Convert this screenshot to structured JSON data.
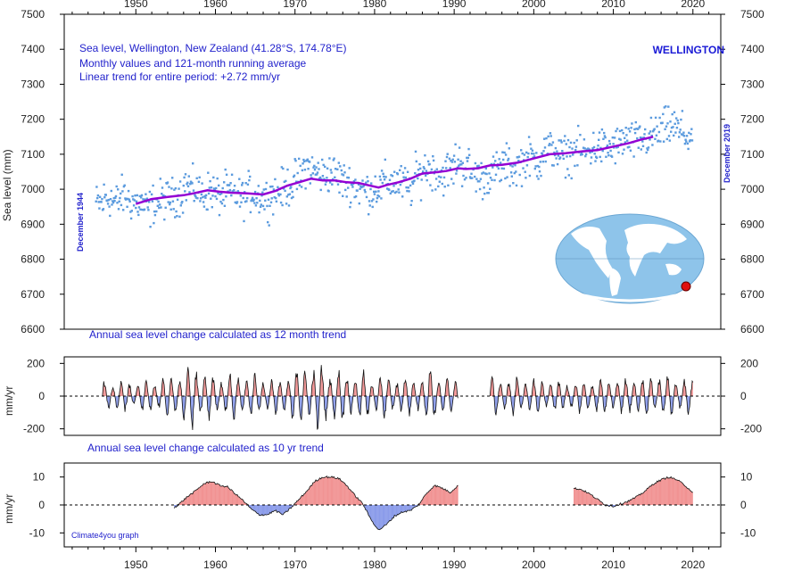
{
  "chart_data": [
    {
      "type": "scatter",
      "title": "WELLINGTON",
      "annotation_lines": [
        "Sea level, Wellington, New Zealand (41.28°S, 174.78°E)",
        "Monthly values and 121-month running average",
        "Linear trend for entire period: +2.72 mm/yr"
      ],
      "ylabel": "Sea level (mm)",
      "xlim": [
        1941,
        2023.5
      ],
      "ylim": [
        6600,
        7500
      ],
      "y_ticks": [
        "6600",
        "6700",
        "6800",
        "6900",
        "7000",
        "7100",
        "7200",
        "7300",
        "7400",
        "7500"
      ],
      "x_ticks": [
        "1950",
        "1960",
        "1970",
        "1980",
        "1990",
        "2000",
        "2010",
        "2020"
      ],
      "start_label": "December 1944",
      "end_label": "December 2019",
      "grid": false,
      "series": [
        {
          "kind": "monthly_points",
          "color": "#5b9bde",
          "yearly_mean": [
            [
              1945,
              6960
            ],
            [
              1946,
              6975
            ],
            [
              1947,
              6965
            ],
            [
              1948,
              6980
            ],
            [
              1949,
              6965
            ],
            [
              1950,
              6958
            ],
            [
              1951,
              6945
            ],
            [
              1952,
              6960
            ],
            [
              1953,
              6970
            ],
            [
              1954,
              6975
            ],
            [
              1955,
              6985
            ],
            [
              1956,
              7010
            ],
            [
              1957,
              7000
            ],
            [
              1958,
              6985
            ],
            [
              1959,
              6995
            ],
            [
              1960,
              6980
            ],
            [
              1961,
              6990
            ],
            [
              1962,
              6985
            ],
            [
              1963,
              6975
            ],
            [
              1964,
              6990
            ],
            [
              1965,
              6980
            ],
            [
              1966,
              6975
            ],
            [
              1967,
              6990
            ],
            [
              1968,
              7000
            ],
            [
              1969,
              7010
            ],
            [
              1970,
              7030
            ],
            [
              1971,
              7065
            ],
            [
              1972,
              7050
            ],
            [
              1973,
              7040
            ],
            [
              1974,
              7045
            ],
            [
              1975,
              7035
            ],
            [
              1976,
              7020
            ],
            [
              1977,
              7010
            ],
            [
              1978,
              7000
            ],
            [
              1979,
              6995
            ],
            [
              1980,
              7005
            ],
            [
              1981,
              7020
            ],
            [
              1982,
              7020
            ],
            [
              1983,
              7015
            ],
            [
              1984,
              7005
            ],
            [
              1985,
              7040
            ],
            [
              1986,
              7060
            ],
            [
              1987,
              7055
            ],
            [
              1988,
              7040
            ],
            [
              1989,
              7055
            ],
            [
              1990,
              7080
            ],
            [
              1991,
              7065
            ],
            [
              1992,
              7045
            ],
            [
              1993,
              7030
            ],
            [
              1994,
              7040
            ],
            [
              1995,
              7055
            ],
            [
              1996,
              7070
            ],
            [
              1997,
              7060
            ],
            [
              1998,
              7075
            ],
            [
              1999,
              7090
            ],
            [
              2000,
              7080
            ],
            [
              2001,
              7110
            ],
            [
              2002,
              7115
            ],
            [
              2003,
              7095
            ],
            [
              2004,
              7100
            ],
            [
              2005,
              7110
            ],
            [
              2006,
              7105
            ],
            [
              2007,
              7115
            ],
            [
              2008,
              7120
            ],
            [
              2009,
              7115
            ],
            [
              2010,
              7125
            ],
            [
              2011,
              7140
            ],
            [
              2012,
              7135
            ],
            [
              2013,
              7140
            ],
            [
              2014,
              7145
            ],
            [
              2015,
              7160
            ],
            [
              2016,
              7175
            ],
            [
              2017,
              7180
            ],
            [
              2018,
              7165
            ],
            [
              2019,
              7150
            ]
          ]
        },
        {
          "kind": "running_average_121_month",
          "color": "#9400d3",
          "points": [
            [
              1950.0,
              6958
            ],
            [
              1952.0,
              6972
            ],
            [
              1954.0,
              6978
            ],
            [
              1956.0,
              6983
            ],
            [
              1957.0,
              6987
            ],
            [
              1959.0,
              6997
            ],
            [
              1960.5,
              6993
            ],
            [
              1962.0,
              6990
            ],
            [
              1964.0,
              6988
            ],
            [
              1966.0,
              6985
            ],
            [
              1967.5,
              6995
            ],
            [
              1969.0,
              7010
            ],
            [
              1970.5,
              7020
            ],
            [
              1972.0,
              7030
            ],
            [
              1973.5,
              7025
            ],
            [
              1975.0,
              7025
            ],
            [
              1976.5,
              7020
            ],
            [
              1978.0,
              7018
            ],
            [
              1979.5,
              7010
            ],
            [
              1980.5,
              7005
            ],
            [
              1981.5,
              7012
            ],
            [
              1983.0,
              7020
            ],
            [
              1984.5,
              7030
            ],
            [
              1986.0,
              7045
            ],
            [
              1987.5,
              7048
            ],
            [
              1989.0,
              7052
            ],
            [
              1990.5,
              7060
            ],
            [
              1991.5,
              7058
            ],
            [
              1993.0,
              7060
            ],
            [
              1994.5,
              7068
            ],
            [
              1996.0,
              7070
            ],
            [
              1998.0,
              7076
            ],
            [
              2000.0,
              7088
            ],
            [
              2002.0,
              7100
            ],
            [
              2004.0,
              7103
            ],
            [
              2006.0,
              7108
            ],
            [
              2008.0,
              7112
            ],
            [
              2010.0,
              7122
            ],
            [
              2012.0,
              7132
            ],
            [
              2013.5,
              7142
            ],
            [
              2015.0,
              7150
            ]
          ]
        }
      ],
      "inset": "world-map-icon with red location marker"
    },
    {
      "type": "area",
      "title": "Annual sea level change calculated as 12 month trend",
      "ylabel": "mm/yr",
      "xlim": [
        1941,
        2023.5
      ],
      "ylim": [
        -240,
        240
      ],
      "y_ticks": [
        "-200",
        "0",
        "200"
      ],
      "grid": false,
      "positive_color": "#e63b3b",
      "negative_color": "#2b4bd8",
      "gap": [
        1990.5,
        1994.5
      ],
      "oscillation_amplitudes": [
        [
          1946,
          90
        ],
        [
          1950,
          80
        ],
        [
          1954,
          110
        ],
        [
          1957,
          200
        ],
        [
          1960,
          120
        ],
        [
          1964,
          130
        ],
        [
          1968,
          100
        ],
        [
          1971,
          190
        ],
        [
          1974,
          170
        ],
        [
          1977,
          150
        ],
        [
          1980,
          120
        ],
        [
          1983,
          110
        ],
        [
          1986,
          130
        ],
        [
          1987.3,
          180
        ],
        [
          1989,
          100
        ],
        [
          1996,
          120
        ],
        [
          2000,
          100
        ],
        [
          2004,
          90
        ],
        [
          2008,
          100
        ],
        [
          2012,
          110
        ],
        [
          2016,
          130
        ],
        [
          2020,
          90
        ]
      ]
    },
    {
      "type": "area",
      "title": "Annual sea level change calculated as 10 yr trend",
      "ylabel": "mm/yr",
      "xlim": [
        1941,
        2023.5
      ],
      "ylim": [
        -15,
        15
      ],
      "y_ticks": [
        "-10",
        "0",
        "10"
      ],
      "grid": false,
      "positive_color": "#e63b3b",
      "negative_color": "#2b4bd8",
      "gap": [
        1990.5,
        2005.0
      ],
      "source_label": "Climate4you graph",
      "series": [
        {
          "name": "",
          "points": [
            [
              1954.8,
              -1
            ],
            [
              1955.5,
              0.5
            ],
            [
              1956.5,
              3
            ],
            [
              1957.5,
              5
            ],
            [
              1958.5,
              7.5
            ],
            [
              1959.5,
              8.5
            ],
            [
              1960.5,
              7
            ],
            [
              1961.5,
              6.5
            ],
            [
              1962.5,
              4
            ],
            [
              1963.5,
              1.5
            ],
            [
              1964.5,
              -1.5
            ],
            [
              1965.5,
              -3.5
            ],
            [
              1966.5,
              -3.5
            ],
            [
              1967.5,
              -2
            ],
            [
              1968.5,
              -3.5
            ],
            [
              1969.5,
              -1
            ],
            [
              1970.5,
              2
            ],
            [
              1971.5,
              5
            ],
            [
              1972.5,
              8.5
            ],
            [
              1973.5,
              10
            ],
            [
              1974.5,
              10
            ],
            [
              1975.5,
              9.5
            ],
            [
              1976.5,
              7
            ],
            [
              1977.5,
              3.5
            ],
            [
              1978.5,
              0.5
            ],
            [
              1979.5,
              -5
            ],
            [
              1980.5,
              -9
            ],
            [
              1981.5,
              -7
            ],
            [
              1982.5,
              -4
            ],
            [
              1983.5,
              -2.5
            ],
            [
              1984.5,
              -2
            ],
            [
              1985.5,
              0
            ],
            [
              1986.5,
              4
            ],
            [
              1987.5,
              7
            ],
            [
              1988.5,
              6
            ],
            [
              1989.5,
              4.5
            ],
            [
              1990.5,
              7
            ],
            [
              2005.0,
              6
            ],
            [
              2006.0,
              5.5
            ],
            [
              2007.0,
              4
            ],
            [
              2008.0,
              2
            ],
            [
              2009.0,
              0
            ],
            [
              2010.0,
              -0.5
            ],
            [
              2011.0,
              0.5
            ],
            [
              2012.0,
              1.5
            ],
            [
              2013.0,
              3
            ],
            [
              2014.0,
              5
            ],
            [
              2015.0,
              7.5
            ],
            [
              2016.0,
              9
            ],
            [
              2017.0,
              10
            ],
            [
              2018.0,
              9
            ],
            [
              2019.0,
              7
            ],
            [
              2020.0,
              4.5
            ]
          ]
        }
      ]
    }
  ]
}
